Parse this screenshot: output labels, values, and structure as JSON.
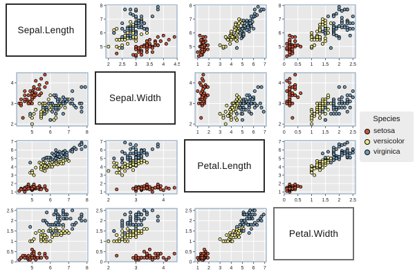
{
  "chart_data": {
    "type": "scatter",
    "subtype": "scatterplot-matrix",
    "title": "",
    "variables": [
      "Sepal.Length",
      "Sepal.Width",
      "Petal.Length",
      "Petal.Width"
    ],
    "ranges": {
      "Sepal.Length": [
        4.156,
        8.044
      ],
      "Sepal.Width": [
        1.904,
        4.496
      ],
      "Petal.Length": [
        0.764,
        7.136
      ],
      "Petal.Width": [
        0.004,
        2.596
      ]
    },
    "panels": [
      {
        "row": 0,
        "col": 1,
        "x": "Sepal.Width",
        "y": "Sepal.Length",
        "x_ticks": [
          2,
          2.5,
          3,
          3.5,
          4,
          4.5
        ],
        "y_ticks": [
          5,
          6,
          7,
          8
        ]
      },
      {
        "row": 0,
        "col": 2,
        "x": "Petal.Length",
        "y": "Sepal.Length",
        "x_ticks": [
          1,
          2,
          3,
          4,
          5,
          6,
          7
        ],
        "y_ticks": [
          5,
          6,
          7,
          8
        ]
      },
      {
        "row": 0,
        "col": 3,
        "x": "Petal.Width",
        "y": "Sepal.Length",
        "x_ticks": [
          0,
          0.5,
          1,
          1.5,
          2,
          2.5
        ],
        "y_ticks": [
          5,
          6,
          7,
          8
        ]
      },
      {
        "row": 1,
        "col": 0,
        "x": "Sepal.Length",
        "y": "Sepal.Width",
        "x_ticks": [
          5,
          6,
          7,
          8
        ],
        "y_ticks": [
          2,
          3,
          4
        ]
      },
      {
        "row": 1,
        "col": 2,
        "x": "Petal.Length",
        "y": "Sepal.Width",
        "x_ticks": [
          1,
          2,
          3,
          4,
          5,
          6,
          7
        ],
        "y_ticks": [
          2,
          3,
          4
        ]
      },
      {
        "row": 1,
        "col": 3,
        "x": "Petal.Width",
        "y": "Sepal.Width",
        "x_ticks": [
          0,
          0.5,
          1,
          1.5,
          2,
          2.5
        ],
        "y_ticks": [
          2,
          3,
          4
        ]
      },
      {
        "row": 2,
        "col": 0,
        "x": "Sepal.Length",
        "y": "Petal.Length",
        "x_ticks": [
          5,
          6,
          7,
          8
        ],
        "y_ticks": [
          1,
          2,
          3,
          4,
          5,
          6,
          7
        ]
      },
      {
        "row": 2,
        "col": 1,
        "x": "Sepal.Width",
        "y": "Petal.Length",
        "x_ticks": [
          2,
          3,
          4
        ],
        "y_ticks": [
          1,
          2,
          3,
          4,
          5,
          6,
          7
        ]
      },
      {
        "row": 2,
        "col": 3,
        "x": "Petal.Width",
        "y": "Petal.Length",
        "x_ticks": [
          0,
          0.5,
          1,
          1.5,
          2,
          2.5
        ],
        "y_ticks": [
          1,
          2,
          3,
          4,
          5,
          6,
          7
        ]
      },
      {
        "row": 3,
        "col": 0,
        "x": "Sepal.Length",
        "y": "Petal.Width",
        "x_ticks": [
          5,
          6,
          7,
          8
        ],
        "y_ticks": [
          0,
          0.5,
          1,
          1.5,
          2,
          2.5
        ]
      },
      {
        "row": 3,
        "col": 1,
        "x": "Sepal.Width",
        "y": "Petal.Width",
        "x_ticks": [
          2,
          3,
          4
        ],
        "y_ticks": [
          0,
          0.5,
          1,
          1.5,
          2,
          2.5
        ]
      },
      {
        "row": 3,
        "col": 2,
        "x": "Petal.Length",
        "y": "Petal.Width",
        "x_ticks": [
          1,
          2,
          3,
          4,
          5,
          6,
          7
        ],
        "y_ticks": [
          0,
          0.5,
          1,
          1.5,
          2,
          2.5
        ]
      }
    ],
    "species_blocks": [
      {
        "name": "setosa",
        "count": 50
      },
      {
        "name": "versicolor",
        "count": 50
      },
      {
        "name": "virginica",
        "count": 50
      }
    ],
    "species_colors": {
      "setosa": "#c9573d",
      "versicolor": "#ece78f",
      "virginica": "#759cb8"
    },
    "style": {
      "panel_bg": "#e8e8e8",
      "grid_color": "#ffffff",
      "frame_color": "#7d9cbd",
      "tick_color": "#444444",
      "tick_label_color": "#1a1a1a",
      "point_stroke": "#000000",
      "legend_bg": "#ececec",
      "diag_border": "#2b2b2b",
      "diag_border_last": "#6e6e6e"
    },
    "legend": {
      "title": "Species",
      "items": [
        {
          "label": "setosa"
        },
        {
          "label": "versicolor"
        },
        {
          "label": "virginica"
        }
      ],
      "position": "right-middle"
    },
    "points": {
      "Sepal.Length": [
        5.1,
        4.9,
        4.7,
        4.6,
        5.0,
        5.4,
        4.6,
        5.0,
        4.4,
        4.9,
        5.4,
        4.8,
        4.8,
        4.3,
        5.8,
        5.7,
        5.4,
        5.1,
        5.7,
        5.1,
        5.4,
        5.1,
        4.6,
        5.1,
        4.8,
        5.0,
        5.0,
        5.2,
        5.2,
        4.7,
        4.8,
        5.4,
        5.2,
        5.5,
        4.9,
        5.0,
        5.5,
        4.9,
        4.4,
        5.1,
        5.0,
        4.5,
        4.4,
        5.0,
        5.1,
        4.8,
        5.1,
        4.6,
        5.3,
        5.0,
        7.0,
        6.4,
        6.9,
        5.5,
        6.5,
        5.7,
        6.3,
        4.9,
        6.6,
        5.2,
        5.0,
        5.9,
        6.0,
        6.1,
        5.6,
        6.7,
        5.6,
        5.8,
        6.2,
        5.6,
        5.9,
        6.1,
        6.3,
        6.1,
        6.4,
        6.6,
        6.8,
        6.7,
        6.0,
        5.7,
        5.5,
        5.5,
        5.8,
        6.0,
        5.4,
        6.0,
        6.7,
        6.3,
        5.6,
        5.5,
        5.5,
        6.1,
        5.8,
        5.0,
        5.6,
        5.7,
        5.7,
        6.2,
        5.1,
        5.7,
        6.3,
        5.8,
        7.1,
        6.3,
        6.5,
        7.6,
        4.9,
        7.3,
        6.7,
        7.2,
        6.5,
        6.4,
        6.8,
        5.7,
        5.8,
        6.4,
        6.5,
        7.7,
        7.7,
        6.0,
        6.9,
        5.6,
        7.7,
        6.3,
        6.7,
        7.2,
        6.2,
        6.1,
        6.4,
        7.2,
        7.4,
        7.9,
        6.4,
        6.3,
        6.1,
        7.7,
        6.3,
        6.4,
        6.0,
        6.9,
        6.7,
        6.9,
        5.8,
        6.8,
        6.7,
        6.7,
        6.3,
        6.5,
        6.2,
        5.9
      ],
      "Sepal.Width": [
        3.5,
        3.0,
        3.2,
        3.1,
        3.6,
        3.9,
        3.4,
        3.4,
        2.9,
        3.1,
        3.7,
        3.4,
        3.0,
        3.0,
        4.0,
        4.4,
        3.9,
        3.5,
        3.8,
        3.8,
        3.4,
        3.7,
        3.6,
        3.3,
        3.4,
        3.0,
        3.4,
        3.5,
        3.4,
        3.2,
        3.1,
        3.4,
        4.1,
        4.2,
        3.1,
        3.2,
        3.5,
        3.6,
        3.0,
        3.4,
        3.5,
        2.3,
        3.2,
        3.5,
        3.8,
        3.0,
        3.8,
        3.2,
        3.7,
        3.3,
        3.2,
        3.2,
        3.1,
        2.3,
        2.8,
        2.8,
        3.3,
        2.4,
        2.9,
        2.7,
        2.0,
        3.0,
        2.2,
        2.9,
        2.9,
        3.1,
        3.0,
        2.7,
        2.2,
        2.5,
        3.2,
        2.8,
        2.5,
        2.8,
        2.9,
        3.0,
        2.8,
        3.0,
        2.9,
        2.6,
        2.4,
        2.4,
        2.7,
        2.7,
        3.0,
        3.4,
        3.1,
        2.3,
        3.0,
        2.5,
        2.6,
        3.0,
        2.6,
        2.3,
        2.7,
        3.0,
        2.9,
        2.9,
        2.5,
        2.8,
        3.3,
        2.7,
        3.0,
        2.9,
        3.0,
        3.0,
        2.5,
        2.9,
        2.5,
        3.6,
        3.2,
        2.7,
        3.0,
        2.5,
        2.8,
        3.2,
        3.0,
        3.8,
        2.6,
        2.2,
        3.2,
        2.8,
        2.8,
        2.7,
        3.3,
        3.2,
        2.8,
        3.0,
        2.8,
        3.0,
        2.8,
        3.8,
        2.8,
        2.8,
        2.6,
        3.0,
        3.4,
        3.1,
        3.0,
        3.1,
        3.1,
        3.1,
        2.7,
        3.2,
        3.3,
        3.0,
        2.5,
        3.0,
        3.4,
        3.0
      ],
      "Petal.Length": [
        1.4,
        1.4,
        1.3,
        1.5,
        1.4,
        1.7,
        1.4,
        1.5,
        1.4,
        1.5,
        1.5,
        1.6,
        1.4,
        1.1,
        1.2,
        1.5,
        1.3,
        1.4,
        1.7,
        1.5,
        1.7,
        1.5,
        1.0,
        1.7,
        1.9,
        1.6,
        1.6,
        1.5,
        1.4,
        1.6,
        1.6,
        1.5,
        1.5,
        1.4,
        1.5,
        1.2,
        1.3,
        1.4,
        1.3,
        1.5,
        1.3,
        1.3,
        1.3,
        1.6,
        1.9,
        1.4,
        1.6,
        1.4,
        1.5,
        1.4,
        4.7,
        4.5,
        4.9,
        4.0,
        4.6,
        4.5,
        4.7,
        3.3,
        4.6,
        3.9,
        3.5,
        4.2,
        4.0,
        4.7,
        3.6,
        4.4,
        4.5,
        4.1,
        4.5,
        3.9,
        4.8,
        4.0,
        4.9,
        4.7,
        4.3,
        4.4,
        4.8,
        5.0,
        4.5,
        3.5,
        3.8,
        3.7,
        3.9,
        5.1,
        4.5,
        4.5,
        4.7,
        4.4,
        4.1,
        4.0,
        4.4,
        4.6,
        4.0,
        3.3,
        4.2,
        4.2,
        4.2,
        4.3,
        3.0,
        4.1,
        6.0,
        5.1,
        5.9,
        5.6,
        5.8,
        6.6,
        4.5,
        6.3,
        5.8,
        6.1,
        5.1,
        5.3,
        5.5,
        5.0,
        5.1,
        5.3,
        5.5,
        6.7,
        6.9,
        5.0,
        5.7,
        4.9,
        6.7,
        4.9,
        5.7,
        6.0,
        4.8,
        4.9,
        5.6,
        5.8,
        6.1,
        6.4,
        5.6,
        5.1,
        5.6,
        6.1,
        5.6,
        5.5,
        4.8,
        5.4,
        5.6,
        5.1,
        5.1,
        5.9,
        5.7,
        5.2,
        5.0,
        5.2,
        5.4,
        5.1
      ],
      "Petal.Width": [
        0.2,
        0.2,
        0.2,
        0.2,
        0.2,
        0.4,
        0.3,
        0.2,
        0.2,
        0.1,
        0.2,
        0.2,
        0.1,
        0.1,
        0.2,
        0.4,
        0.4,
        0.3,
        0.3,
        0.3,
        0.2,
        0.4,
        0.2,
        0.5,
        0.2,
        0.2,
        0.4,
        0.2,
        0.2,
        0.2,
        0.2,
        0.4,
        0.1,
        0.2,
        0.2,
        0.2,
        0.2,
        0.1,
        0.2,
        0.2,
        0.3,
        0.3,
        0.2,
        0.6,
        0.4,
        0.3,
        0.2,
        0.2,
        0.2,
        0.2,
        1.4,
        1.5,
        1.5,
        1.3,
        1.5,
        1.3,
        1.6,
        1.0,
        1.3,
        1.4,
        1.0,
        1.5,
        1.0,
        1.4,
        1.3,
        1.4,
        1.5,
        1.0,
        1.5,
        1.1,
        1.8,
        1.3,
        1.5,
        1.2,
        1.3,
        1.4,
        1.4,
        1.7,
        1.5,
        1.0,
        1.1,
        1.0,
        1.2,
        1.6,
        1.5,
        1.6,
        1.5,
        1.3,
        1.3,
        1.3,
        1.2,
        1.4,
        1.2,
        1.0,
        1.3,
        1.2,
        1.3,
        1.3,
        1.1,
        1.3,
        2.5,
        1.9,
        2.1,
        1.8,
        2.2,
        2.1,
        1.7,
        1.8,
        1.8,
        2.5,
        2.0,
        1.9,
        2.1,
        2.0,
        2.4,
        2.3,
        1.8,
        2.2,
        2.3,
        1.5,
        2.3,
        2.0,
        2.0,
        1.8,
        2.1,
        1.8,
        1.8,
        1.8,
        2.1,
        1.6,
        1.9,
        2.0,
        2.2,
        1.5,
        1.4,
        2.3,
        2.4,
        1.8,
        1.8,
        2.1,
        2.4,
        2.3,
        1.9,
        2.3,
        2.5,
        2.3,
        1.9,
        2.0,
        2.3,
        1.8
      ]
    }
  }
}
